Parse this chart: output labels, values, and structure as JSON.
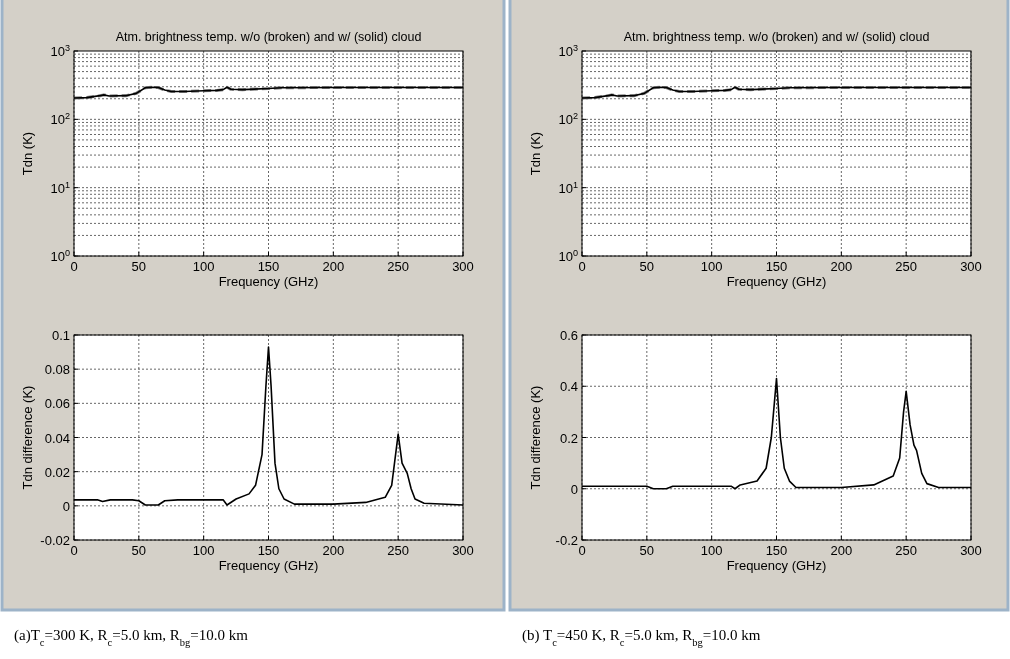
{
  "chart_data": [
    {
      "type": "line",
      "title": "Atm. brightness temp. w/o (broken) and w/ (solid) cloud",
      "xlabel": "Frequency (GHz)",
      "ylabel": "Tdn (K)",
      "log": "y",
      "grid": true,
      "xlim": [
        0,
        300
      ],
      "xticks": [
        0,
        50,
        100,
        150,
        200,
        250,
        300
      ],
      "ylim": [
        1,
        1000
      ],
      "yticks": [
        {
          "value": 1,
          "label": "10$^{0}$"
        },
        {
          "value": 10,
          "label": "10$^{1}$"
        },
        {
          "value": 100,
          "label": "10$^{2}$"
        },
        {
          "value": 1000,
          "label": "10$^{3}$"
        }
      ],
      "x": [
        0,
        10,
        20,
        23,
        27,
        40,
        48,
        55,
        60,
        65,
        70,
        75,
        85,
        100,
        110,
        115,
        118,
        121,
        130,
        150,
        160,
        200,
        250,
        300
      ],
      "series": [
        {
          "color": "#808080",
          "line_style": "dashed",
          "values": [
            205,
            208,
            222,
            228,
            220,
            222,
            240,
            290,
            295,
            292,
            268,
            255,
            255,
            262,
            265,
            272,
            295,
            275,
            272,
            282,
            290,
            292,
            292,
            292
          ]
        },
        {
          "color": "#000000",
          "line_style": "solid",
          "values": [
            205,
            208,
            222,
            228,
            220,
            222,
            240,
            290,
            295,
            292,
            268,
            255,
            255,
            262,
            265,
            272,
            295,
            275,
            272,
            282,
            290,
            292,
            292,
            292
          ]
        }
      ]
    },
    {
      "type": "line",
      "title": "Atm. brightness temp. w/o (broken) and w/ (solid) cloud",
      "xlabel": "Frequency (GHz)",
      "ylabel": "Tdn (K)",
      "log": "y",
      "grid": true,
      "xlim": [
        0,
        300
      ],
      "xticks": [
        0,
        50,
        100,
        150,
        200,
        250,
        300
      ],
      "ylim": [
        1,
        1000
      ],
      "yticks": [
        {
          "value": 1,
          "label": "10$^{0}$"
        },
        {
          "value": 10,
          "label": "10$^{1}$"
        },
        {
          "value": 100,
          "label": "10$^{2}$"
        },
        {
          "value": 1000,
          "label": "10$^{3}$"
        }
      ],
      "x": [
        0,
        10,
        20,
        23,
        27,
        40,
        48,
        55,
        60,
        65,
        70,
        75,
        85,
        100,
        110,
        115,
        118,
        121,
        130,
        150,
        160,
        200,
        250,
        300
      ],
      "series": [
        {
          "color": "#808080",
          "line_style": "dashed",
          "values": [
            205,
            208,
            222,
            228,
            220,
            222,
            240,
            290,
            295,
            292,
            268,
            255,
            255,
            262,
            265,
            272,
            295,
            275,
            272,
            282,
            290,
            292,
            292,
            292
          ]
        },
        {
          "color": "#000000",
          "line_style": "solid",
          "values": [
            205,
            208,
            222,
            228,
            220,
            222,
            240,
            290,
            295,
            292,
            268,
            255,
            255,
            262,
            265,
            272,
            295,
            275,
            272,
            282,
            290,
            292,
            292,
            292
          ]
        }
      ]
    },
    {
      "type": "line",
      "xlabel": "Frequency (GHz)",
      "ylabel": "Tdn difference (K)",
      "grid": true,
      "xlim": [
        0,
        300
      ],
      "xticks": [
        0,
        50,
        100,
        150,
        200,
        250,
        300
      ],
      "ylim": [
        -0.02,
        0.1
      ],
      "yticks": [
        -0.02,
        0,
        0.02,
        0.04,
        0.06,
        0.08,
        0.1
      ],
      "annotations": [
        "(a)T$_{c}$=300 K, R$_{c}$=5.0 km, R$_{bg}$=10.0 km"
      ],
      "x": [
        0,
        18,
        22,
        28,
        45,
        50,
        55,
        65,
        70,
        80,
        115,
        118,
        125,
        135,
        140,
        145,
        148,
        150,
        152,
        155,
        158,
        162,
        170,
        200,
        225,
        240,
        245,
        248,
        250,
        253,
        257,
        260,
        263,
        270,
        300
      ],
      "series": [
        {
          "color": "#000000",
          "line_style": "solid",
          "values": [
            0.0035,
            0.0035,
            0.0025,
            0.0035,
            0.0035,
            0.003,
            0.0005,
            0.0005,
            0.003,
            0.0035,
            0.0035,
            0.0005,
            0.004,
            0.007,
            0.012,
            0.03,
            0.07,
            0.093,
            0.07,
            0.025,
            0.01,
            0.004,
            0.001,
            0.001,
            0.002,
            0.005,
            0.012,
            0.03,
            0.042,
            0.025,
            0.019,
            0.01,
            0.004,
            0.0015,
            0.0005
          ]
        }
      ]
    },
    {
      "type": "line",
      "xlabel": "Frequency (GHz)",
      "ylabel": "Tdn difference (K)",
      "grid": true,
      "xlim": [
        0,
        300
      ],
      "xticks": [
        0,
        50,
        100,
        150,
        200,
        250,
        300
      ],
      "ylim": [
        -0.2,
        0.6
      ],
      "yticks": [
        -0.2,
        0,
        0.2,
        0.4,
        0.6
      ],
      "annotations": [
        "(b) T$_{c}$=450 K, R$_{c}$=5.0 km, R$_{bg}$=10.0 km"
      ],
      "x": [
        0,
        50,
        55,
        65,
        70,
        115,
        118,
        122,
        135,
        142,
        146,
        150,
        153,
        156,
        160,
        165,
        200,
        225,
        240,
        245,
        248,
        250,
        253,
        256,
        258,
        262,
        266,
        275,
        300
      ],
      "series": [
        {
          "color": "#000000",
          "line_style": "solid",
          "values": [
            0.01,
            0.01,
            0,
            0,
            0.01,
            0.01,
            0,
            0.015,
            0.03,
            0.08,
            0.2,
            0.43,
            0.2,
            0.08,
            0.03,
            0.005,
            0.005,
            0.015,
            0.05,
            0.12,
            0.3,
            0.38,
            0.25,
            0.17,
            0.15,
            0.06,
            0.02,
            0.005,
            0.005
          ]
        }
      ]
    }
  ]
}
